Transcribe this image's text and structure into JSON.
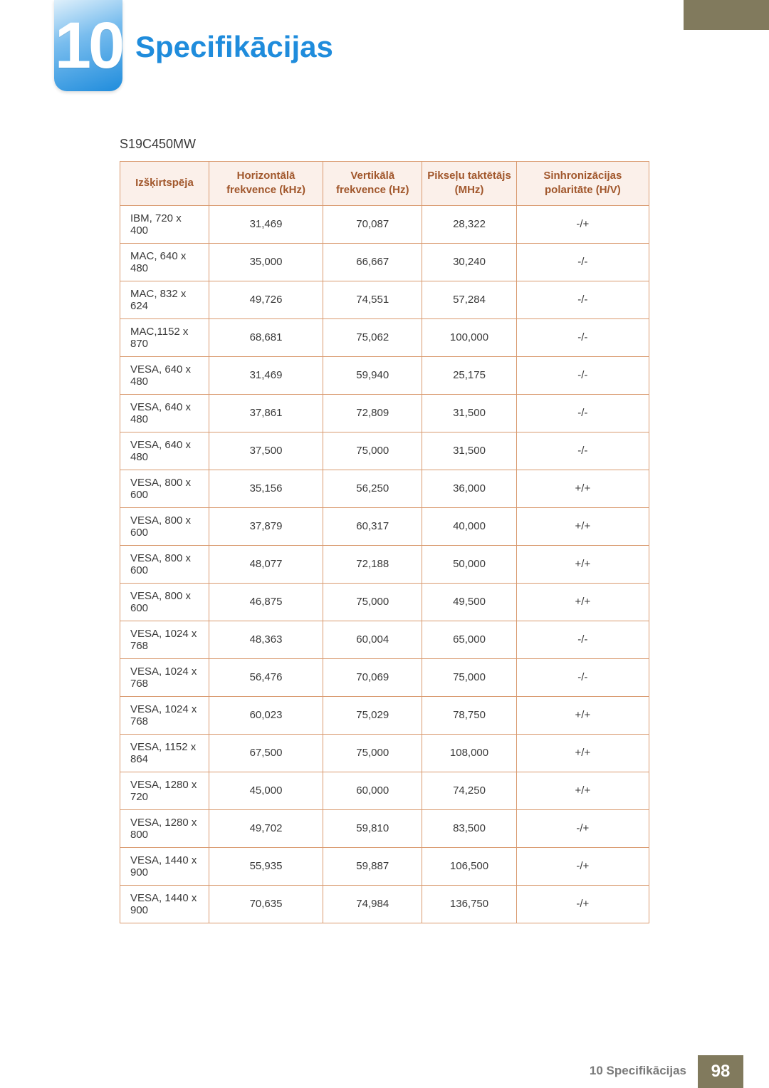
{
  "header": {
    "chapter_number": "10",
    "title": "Specifikācijas",
    "accent_color": "#1f8cdc",
    "stripe_color": "#817a5d"
  },
  "model": "S19C450MW",
  "table": {
    "border_color": "#d99a6f",
    "header_bg": "#fbf0ea",
    "header_fg": "#a1572c",
    "columns": [
      "Izšķirtspēja",
      "Horizontālā frekvence (kHz)",
      "Vertikālā frekvence (Hz)",
      "Pikseļu taktētājs (MHz)",
      "Sinhronizācijas polaritāte (H/V)"
    ],
    "rows": [
      [
        "IBM, 720 x 400",
        "31,469",
        "70,087",
        "28,322",
        "-/+"
      ],
      [
        "MAC, 640 x 480",
        "35,000",
        "66,667",
        "30,240",
        "-/-"
      ],
      [
        "MAC, 832 x 624",
        "49,726",
        "74,551",
        "57,284",
        "-/-"
      ],
      [
        "MAC,1152 x 870",
        "68,681",
        "75,062",
        "100,000",
        "-/-"
      ],
      [
        "VESA, 640 x 480",
        "31,469",
        "59,940",
        "25,175",
        "-/-"
      ],
      [
        "VESA, 640 x 480",
        "37,861",
        "72,809",
        "31,500",
        "-/-"
      ],
      [
        "VESA, 640 x 480",
        "37,500",
        "75,000",
        "31,500",
        "-/-"
      ],
      [
        "VESA, 800 x 600",
        "35,156",
        "56,250",
        "36,000",
        "+/+"
      ],
      [
        "VESA, 800 x 600",
        "37,879",
        "60,317",
        "40,000",
        "+/+"
      ],
      [
        "VESA, 800 x 600",
        "48,077",
        "72,188",
        "50,000",
        "+/+"
      ],
      [
        "VESA, 800 x 600",
        "46,875",
        "75,000",
        "49,500",
        "+/+"
      ],
      [
        "VESA, 1024 x 768",
        "48,363",
        "60,004",
        "65,000",
        "-/-"
      ],
      [
        "VESA, 1024 x 768",
        "56,476",
        "70,069",
        "75,000",
        "-/-"
      ],
      [
        "VESA, 1024 x 768",
        "60,023",
        "75,029",
        "78,750",
        "+/+"
      ],
      [
        "VESA, 1152 x 864",
        "67,500",
        "75,000",
        "108,000",
        "+/+"
      ],
      [
        "VESA, 1280 x 720",
        "45,000",
        "60,000",
        "74,250",
        "+/+"
      ],
      [
        "VESA, 1280 x 800",
        "49,702",
        "59,810",
        "83,500",
        "-/+"
      ],
      [
        "VESA, 1440 x 900",
        "55,935",
        "59,887",
        "106,500",
        "-/+"
      ],
      [
        "VESA, 1440 x 900",
        "70,635",
        "74,984",
        "136,750",
        "-/+"
      ]
    ]
  },
  "footer": {
    "label": "10 Specifikācijas",
    "page": "98",
    "page_bg": "#817a5d"
  }
}
